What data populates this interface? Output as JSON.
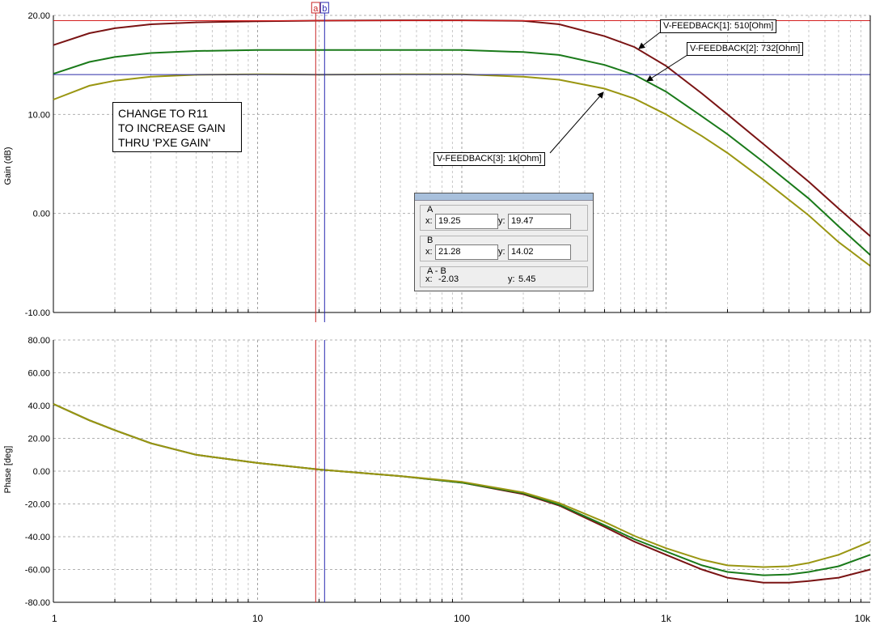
{
  "gain_chart": {
    "type": "line",
    "ylabel": "Gain (dB)",
    "ylim": [
      -10,
      20
    ],
    "yticks": [
      "20.00",
      "10.00",
      "0.00",
      "-10.00"
    ],
    "x_scale": "log",
    "xlim": [
      1,
      10000
    ],
    "grid": true,
    "series": [
      {
        "name": "V-FEEDBACK[1]: 510[Ohm]",
        "color": "#7a1414",
        "x": [
          1,
          1.5,
          2,
          3,
          5,
          10,
          20,
          50,
          100,
          200,
          300,
          500,
          700,
          1000,
          1500,
          2000,
          3000,
          5000,
          7000,
          10000
        ],
        "y": [
          17.0,
          18.2,
          18.7,
          19.1,
          19.3,
          19.4,
          19.47,
          19.5,
          19.5,
          19.45,
          19.1,
          17.9,
          16.8,
          14.9,
          12.1,
          10.0,
          7.0,
          3.2,
          0.5,
          -2.3
        ]
      },
      {
        "name": "V-FEEDBACK[2]: 732[Ohm]",
        "color": "#1a7a1a",
        "x": [
          1,
          1.5,
          2,
          3,
          5,
          10,
          20,
          50,
          100,
          200,
          300,
          500,
          700,
          1000,
          1500,
          2000,
          3000,
          5000,
          7000,
          10000
        ],
        "y": [
          14.1,
          15.3,
          15.8,
          16.2,
          16.4,
          16.5,
          16.5,
          16.5,
          16.5,
          16.3,
          16.0,
          15.0,
          14.0,
          12.3,
          9.8,
          8.0,
          5.2,
          1.5,
          -1.3,
          -4.2
        ]
      },
      {
        "name": "V-FEEDBACK[3]: 1k[Ohm]",
        "color": "#9a9612",
        "x": [
          1,
          1.5,
          2,
          3,
          5,
          10,
          20,
          50,
          100,
          200,
          300,
          500,
          700,
          1000,
          1500,
          2000,
          3000,
          5000,
          7000,
          10000
        ],
        "y": [
          11.5,
          12.9,
          13.4,
          13.8,
          14.0,
          14.05,
          14.02,
          14.05,
          14.05,
          13.8,
          13.5,
          12.6,
          11.6,
          10.0,
          7.8,
          6.1,
          3.4,
          -0.2,
          -2.9,
          -5.3
        ]
      }
    ],
    "hlines": [
      {
        "y": 19.47,
        "color": "#d42020"
      },
      {
        "y": 14.02,
        "color": "#2a2aa8"
      }
    ],
    "annotations": [
      {
        "text": "V-FEEDBACK[1]: 510[Ohm]"
      },
      {
        "text": "V-FEEDBACK[2]: 732[Ohm]"
      },
      {
        "text": "V-FEEDBACK[3]: 1k[Ohm]"
      }
    ]
  },
  "phase_chart": {
    "type": "line",
    "ylabel": "Phase [deg]",
    "ylim": [
      -80,
      80
    ],
    "yticks": [
      "80.00",
      "60.00",
      "40.00",
      "20.00",
      "0.00",
      "-20.00",
      "-40.00",
      "-60.00",
      "-80.00"
    ],
    "x_scale": "log",
    "xlim": [
      1,
      10000
    ],
    "xticks": [
      "1",
      "10",
      "100",
      "1k",
      "10k"
    ],
    "grid": true,
    "series": [
      {
        "name": "V-FEEDBACK[1]: 510[Ohm]",
        "color": "#7a1414",
        "x": [
          1,
          1.5,
          2,
          3,
          5,
          10,
          20,
          50,
          100,
          200,
          300,
          500,
          700,
          1000,
          1500,
          2000,
          3000,
          4000,
          5000,
          7000,
          10000
        ],
        "y": [
          41,
          31,
          25,
          17,
          10,
          5,
          1,
          -3,
          -7,
          -14,
          -21,
          -34,
          -43,
          -51,
          -60,
          -65,
          -68,
          -68,
          -67,
          -65,
          -60
        ]
      },
      {
        "name": "V-FEEDBACK[2]: 732[Ohm]",
        "color": "#1a7a1a",
        "x": [
          1,
          1.5,
          2,
          3,
          5,
          10,
          20,
          50,
          100,
          200,
          300,
          500,
          700,
          1000,
          1500,
          2000,
          3000,
          4000,
          5000,
          7000,
          10000
        ],
        "y": [
          41,
          31,
          25,
          17,
          10,
          5,
          1,
          -3,
          -7,
          -13.5,
          -20.5,
          -33,
          -41.5,
          -49,
          -57.5,
          -61.5,
          -63.5,
          -63,
          -61.5,
          -58,
          -51
        ]
      },
      {
        "name": "V-FEEDBACK[3]: 1k[Ohm]",
        "color": "#9a9612",
        "x": [
          1,
          1.5,
          2,
          3,
          5,
          10,
          20,
          50,
          100,
          200,
          300,
          500,
          700,
          1000,
          1500,
          2000,
          3000,
          4000,
          5000,
          7000,
          10000
        ],
        "y": [
          41,
          31,
          25,
          17,
          10,
          5,
          1,
          -3,
          -6.5,
          -13,
          -19.5,
          -31,
          -39.5,
          -47,
          -54,
          -57.5,
          -58.5,
          -58,
          -56,
          -51,
          -43
        ]
      }
    ]
  },
  "cursors": {
    "a": {
      "label": "a",
      "x": 19.25,
      "color": "#c82828"
    },
    "b": {
      "label": "b",
      "x": 21.28,
      "color": "#2828b0"
    }
  },
  "note": {
    "lines": [
      "CHANGE TO R11",
      "TO INCREASE GAIN",
      "THRU 'PXE GAIN'"
    ]
  },
  "cursor_panel": {
    "a": {
      "label": "A",
      "x_label": "x:",
      "x": "19.25",
      "y_label": "y:",
      "y": "19.47"
    },
    "b": {
      "label": "B",
      "x_label": "x:",
      "x": "21.28",
      "y_label": "y:",
      "y": "14.02"
    },
    "diff": {
      "label": "A - B",
      "x_label": "x:",
      "x": "-2.03",
      "y_label": "y:",
      "y": "5.45"
    }
  }
}
